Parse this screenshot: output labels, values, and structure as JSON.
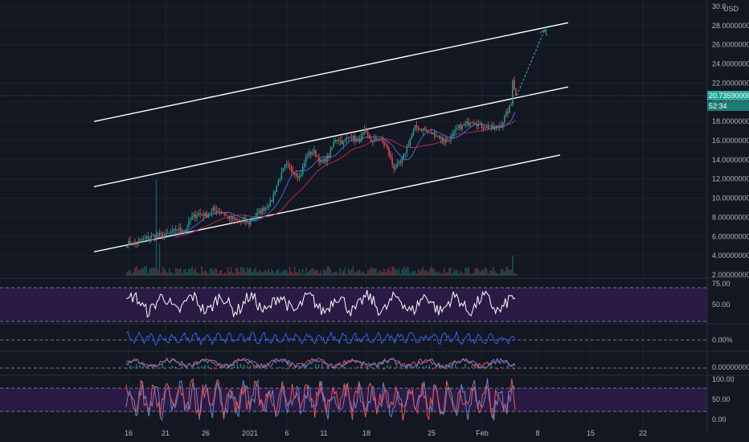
{
  "currency": "USD",
  "price_axis": {
    "labels": [
      "30.0",
      "28.00000000",
      "26.00000000",
      "24.00000000",
      "22.00000000",
      "20.00000000",
      "18.00000000",
      "16.00000000",
      "14.00000000",
      "12.00000000",
      "10.00000000",
      "8.00000000",
      "6.00000000",
      "4.00000000",
      "2.00000000"
    ],
    "current_price": "20.73590000",
    "countdown": "52:34"
  },
  "rsi_axis": {
    "labels": [
      "75.00",
      "50.00"
    ]
  },
  "pct_axis": {
    "labels": [
      "0.00%"
    ]
  },
  "macd_axis": {
    "labels": [
      "0.00000000"
    ]
  },
  "stoch_axis": {
    "labels": [
      "100.00",
      "50.00",
      "0.00"
    ]
  },
  "time_axis": {
    "labels": [
      "16",
      "21",
      "26",
      "2021",
      "6",
      "11",
      "18",
      "25",
      "Feb",
      "8",
      "15",
      "22"
    ]
  },
  "colors": {
    "background": "#131722",
    "up": "#26a69a",
    "down": "#ef5350",
    "channel": "#ffffff",
    "projection": "#26a69a",
    "band_fill": "#2a1b45",
    "rsi_line": "#ffffff",
    "pct_line": "#2962ff",
    "stoch_k": "#5b8bd6",
    "stoch_d": "#ef5350"
  },
  "chart_data": {
    "type": "candlestick",
    "y_range": [
      2,
      30
    ],
    "closes_anchor": [
      5.3,
      5.2,
      5.6,
      5.9,
      6.2,
      6.0,
      6.3,
      6.8,
      6.5,
      8.0,
      8.4,
      8.2,
      8.8,
      8.6,
      8.1,
      7.7,
      7.6,
      7.4,
      8.3,
      8.9,
      9.6,
      11.8,
      13.4,
      12.9,
      12.2,
      14.6,
      14.8,
      13.6,
      14.4,
      16.3,
      15.8,
      16.6,
      15.8,
      16.9,
      15.9,
      16.2,
      15.4,
      13.2,
      13.6,
      15.6,
      17.4,
      17.2,
      16.8,
      16.6,
      15.9,
      16.3,
      17.4,
      17.6,
      18.2,
      17.5,
      17.4,
      17.2,
      17.8,
      19.3,
      20.7
    ],
    "channel_lines": [
      {
        "name": "upper-channel",
        "p1": [
          "Dec 14",
          18.0
        ],
        "p2": [
          "Feb 16",
          28.3
        ]
      },
      {
        "name": "middle-channel",
        "p1": [
          "Dec 14",
          11.2
        ],
        "p2": [
          "Feb 16",
          21.6
        ]
      },
      {
        "name": "lower-channel",
        "p1": [
          "Dec 14",
          4.4
        ],
        "p2": [
          "Feb 15",
          14.5
        ]
      }
    ],
    "projection_target": 27.6
  }
}
